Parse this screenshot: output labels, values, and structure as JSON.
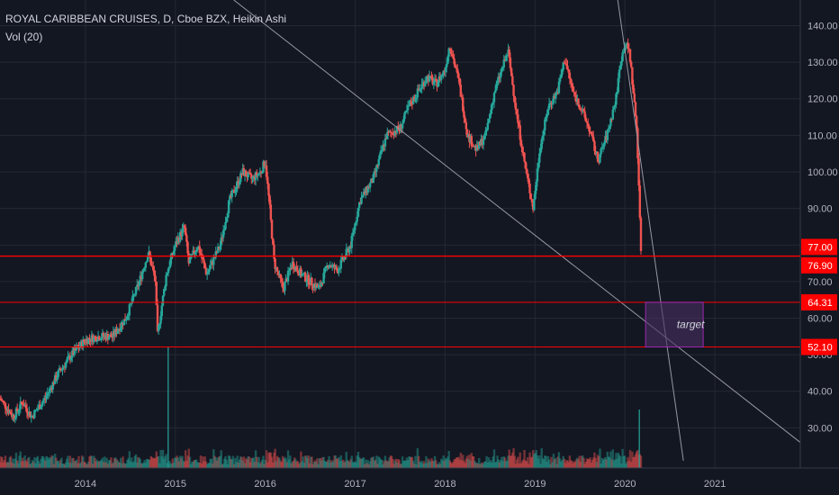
{
  "legend": {
    "symbol_line": "ROYAL CARIBBEAN CRUISES, D, Cboe BZX, Heikin Ashi",
    "volume_line": "Vol (20)"
  },
  "colors": {
    "background": "#131722",
    "grid": "#242833",
    "up": "#26a69a",
    "down": "#ef5350",
    "axis_text": "#b2b5be",
    "level_line": "#ff0000",
    "trend_line": "#9598a1",
    "target_box": "#4a2f63",
    "target_border": "#9c27b0"
  },
  "chart_data": {
    "type": "candlestick",
    "title": "ROYAL CARIBBEAN CRUISES, D, Cboe BZX, Heikin Ashi",
    "x_ticks": [
      "2014",
      "2015",
      "2016",
      "2017",
      "2018",
      "2019",
      "2020",
      "2021"
    ],
    "y_ticks": [
      30,
      40,
      50,
      60,
      70,
      80,
      90,
      100,
      110,
      120,
      130,
      140
    ],
    "y_tick_labels": [
      "30.00",
      "40.00",
      "50.00",
      "60.00",
      "70.00",
      "80.00",
      "90.00",
      "100.00",
      "110.00",
      "120.00",
      "130.00",
      "140.00"
    ],
    "ylim": [
      19,
      147
    ],
    "xlim": [
      2013.05,
      2021.95
    ],
    "grid": true,
    "price_path": [
      [
        2013.05,
        38
      ],
      [
        2013.2,
        33
      ],
      [
        2013.3,
        37
      ],
      [
        2013.4,
        33
      ],
      [
        2013.55,
        38
      ],
      [
        2013.7,
        45
      ],
      [
        2013.85,
        50
      ],
      [
        2014.0,
        54
      ],
      [
        2014.15,
        55
      ],
      [
        2014.3,
        55
      ],
      [
        2014.45,
        60
      ],
      [
        2014.6,
        70
      ],
      [
        2014.7,
        78
      ],
      [
        2014.78,
        70
      ],
      [
        2014.8,
        55
      ],
      [
        2014.9,
        72
      ],
      [
        2015.0,
        80
      ],
      [
        2015.1,
        85
      ],
      [
        2015.15,
        75
      ],
      [
        2015.25,
        80
      ],
      [
        2015.35,
        72
      ],
      [
        2015.5,
        80
      ],
      [
        2015.6,
        92
      ],
      [
        2015.75,
        100
      ],
      [
        2015.85,
        98
      ],
      [
        2015.95,
        100
      ],
      [
        2016.0,
        103
      ],
      [
        2016.05,
        90
      ],
      [
        2016.1,
        75
      ],
      [
        2016.2,
        68
      ],
      [
        2016.3,
        75
      ],
      [
        2016.4,
        72
      ],
      [
        2016.5,
        70
      ],
      [
        2016.6,
        68
      ],
      [
        2016.7,
        75
      ],
      [
        2016.8,
        73
      ],
      [
        2016.95,
        80
      ],
      [
        2017.05,
        92
      ],
      [
        2017.2,
        98
      ],
      [
        2017.35,
        110
      ],
      [
        2017.5,
        112
      ],
      [
        2017.6,
        118
      ],
      [
        2017.7,
        122
      ],
      [
        2017.8,
        126
      ],
      [
        2017.9,
        124
      ],
      [
        2018.0,
        128
      ],
      [
        2018.05,
        135
      ],
      [
        2018.15,
        125
      ],
      [
        2018.25,
        110
      ],
      [
        2018.35,
        106
      ],
      [
        2018.45,
        110
      ],
      [
        2018.55,
        122
      ],
      [
        2018.7,
        133
      ],
      [
        2018.8,
        115
      ],
      [
        2018.9,
        100
      ],
      [
        2018.98,
        90
      ],
      [
        2019.05,
        106
      ],
      [
        2019.15,
        118
      ],
      [
        2019.25,
        122
      ],
      [
        2019.33,
        131
      ],
      [
        2019.42,
        122
      ],
      [
        2019.5,
        118
      ],
      [
        2019.6,
        112
      ],
      [
        2019.7,
        103
      ],
      [
        2019.8,
        110
      ],
      [
        2019.9,
        120
      ],
      [
        2019.95,
        130
      ],
      [
        2020.0,
        135
      ],
      [
        2020.05,
        133
      ],
      [
        2020.1,
        120
      ],
      [
        2020.13,
        112
      ],
      [
        2020.15,
        100
      ],
      [
        2020.17,
        83
      ],
      [
        2020.18,
        78
      ]
    ],
    "horizontal_levels": [
      {
        "value": 77.0,
        "label": "77.00"
      },
      {
        "value": 76.9,
        "label": "76.90"
      },
      {
        "value": 64.31,
        "label": "64.31"
      },
      {
        "value": 52.1,
        "label": "52.10"
      }
    ],
    "trend_lines": [
      {
        "from": [
          2015.65,
          147
        ],
        "to": [
          2021.95,
          26
        ]
      },
      {
        "from": [
          2019.92,
          147
        ],
        "to": [
          2020.65,
          21
        ]
      }
    ],
    "target_zone": {
      "x_from": 2020.23,
      "x_to": 2020.87,
      "y_from": 52.1,
      "y_to": 64.31,
      "label": "target"
    },
    "volume_spikes": [
      {
        "x": 2014.92,
        "y": 52
      },
      {
        "x": 2020.16,
        "y": 35
      }
    ]
  }
}
